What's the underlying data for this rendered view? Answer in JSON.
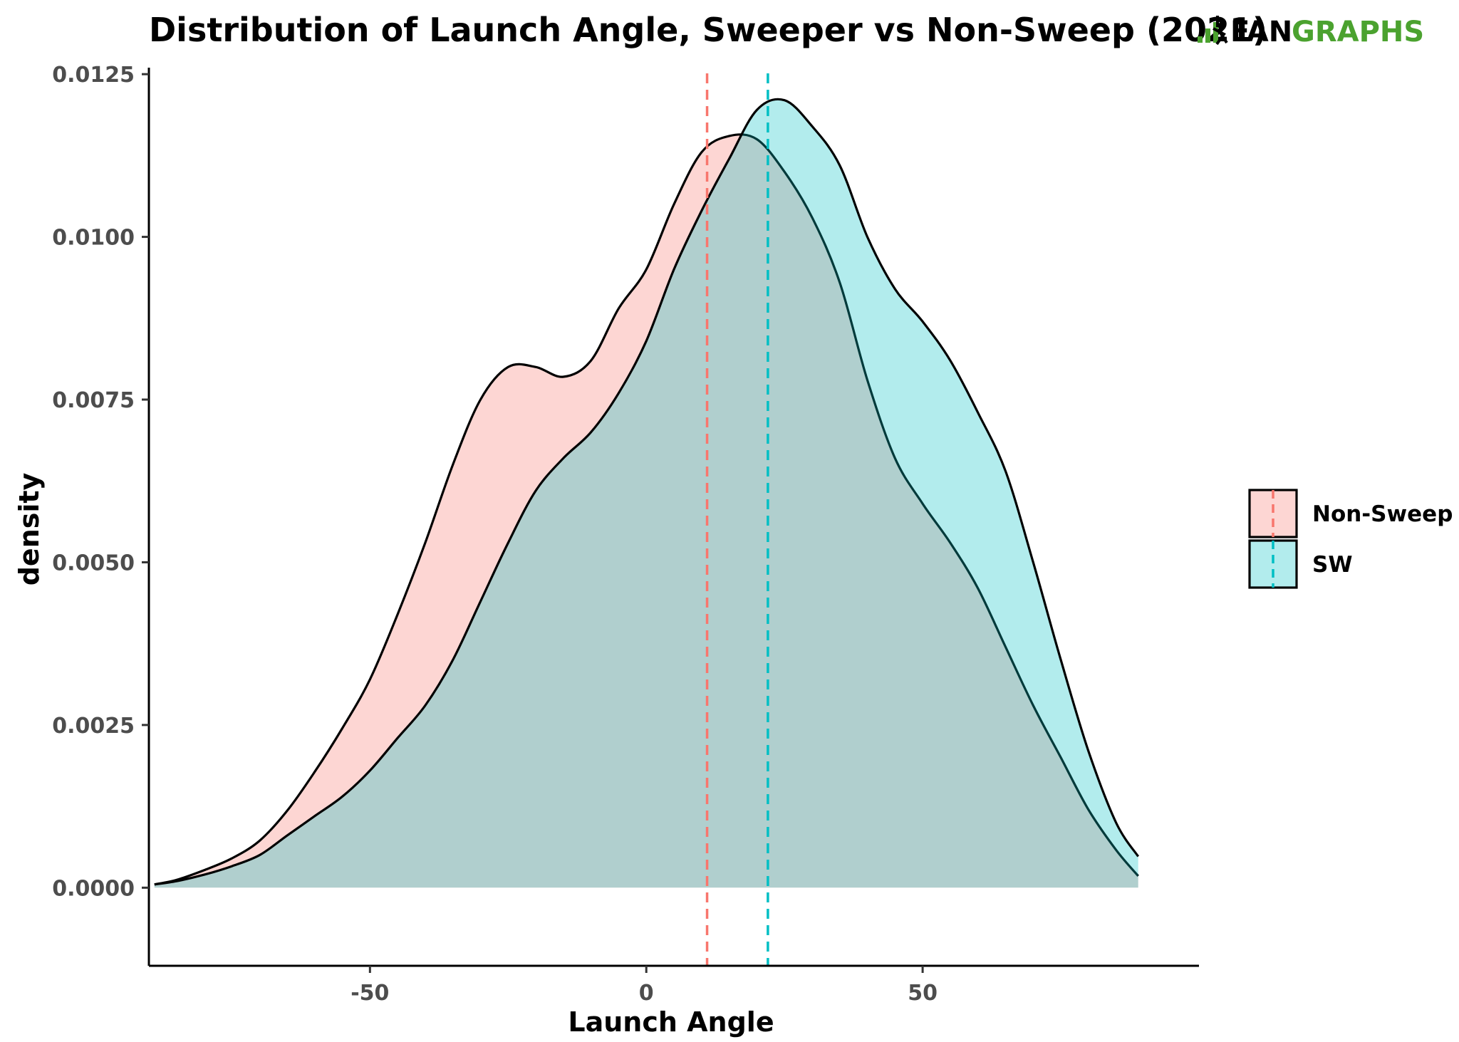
{
  "chart_data": {
    "type": "area",
    "title": "Distribution of Launch Angle, Sweeper vs Non-Sweep (2021)",
    "xlabel": "Launch Angle",
    "ylabel": "density",
    "xlim": [
      -90,
      100
    ],
    "ylim": [
      -0.0012,
      0.0126
    ],
    "x_ticks": [
      -50,
      0,
      50
    ],
    "x_tick_labels": [
      "-50",
      "0",
      "50"
    ],
    "y_ticks": [
      0,
      0.0025,
      0.005,
      0.0075,
      0.01,
      0.0125
    ],
    "y_tick_labels": [
      "0.0000",
      "0.0025",
      "0.0050",
      "0.0075",
      "0.0100",
      "0.0125"
    ],
    "grid": false,
    "legend_position": "right",
    "series": [
      {
        "name": "Non-Sweep",
        "color": "#F8766D",
        "mean_line": 11,
        "points": [
          [
            -89,
            5e-05
          ],
          [
            -85,
            0.00012
          ],
          [
            -80,
            0.00027
          ],
          [
            -75,
            0.00045
          ],
          [
            -70,
            0.00072
          ],
          [
            -65,
            0.00118
          ],
          [
            -60,
            0.00178
          ],
          [
            -55,
            0.00245
          ],
          [
            -50,
            0.0032
          ],
          [
            -45,
            0.0042
          ],
          [
            -40,
            0.0053
          ],
          [
            -35,
            0.0065
          ],
          [
            -30,
            0.0075
          ],
          [
            -25,
            0.008
          ],
          [
            -20,
            0.008
          ],
          [
            -15,
            0.00785
          ],
          [
            -10,
            0.0081
          ],
          [
            -5,
            0.0089
          ],
          [
            0,
            0.0095
          ],
          [
            5,
            0.0105
          ],
          [
            10,
            0.0113
          ],
          [
            15,
            0.01155
          ],
          [
            20,
            0.0115
          ],
          [
            25,
            0.011
          ],
          [
            30,
            0.0103
          ],
          [
            35,
            0.0093
          ],
          [
            40,
            0.0078
          ],
          [
            45,
            0.0066
          ],
          [
            50,
            0.0059
          ],
          [
            55,
            0.0053
          ],
          [
            60,
            0.0046
          ],
          [
            65,
            0.0037
          ],
          [
            70,
            0.0028
          ],
          [
            75,
            0.002
          ],
          [
            80,
            0.0012
          ],
          [
            85,
            0.00058
          ],
          [
            89,
            0.00018
          ]
        ]
      },
      {
        "name": "SW",
        "color": "#00BFC4",
        "mean_line": 22,
        "points": [
          [
            -89,
            5e-05
          ],
          [
            -85,
            0.0001
          ],
          [
            -80,
            0.0002
          ],
          [
            -75,
            0.00033
          ],
          [
            -70,
            0.0005
          ],
          [
            -65,
            0.0008
          ],
          [
            -60,
            0.0011
          ],
          [
            -55,
            0.0014
          ],
          [
            -50,
            0.0018
          ],
          [
            -45,
            0.0023
          ],
          [
            -40,
            0.0028
          ],
          [
            -35,
            0.0035
          ],
          [
            -30,
            0.0044
          ],
          [
            -25,
            0.0053
          ],
          [
            -20,
            0.0061
          ],
          [
            -15,
            0.0066
          ],
          [
            -10,
            0.007
          ],
          [
            -5,
            0.0076
          ],
          [
            0,
            0.0084
          ],
          [
            5,
            0.0095
          ],
          [
            10,
            0.0104
          ],
          [
            15,
            0.0112
          ],
          [
            20,
            0.01195
          ],
          [
            25,
            0.0121
          ],
          [
            30,
            0.0117
          ],
          [
            35,
            0.0111
          ],
          [
            40,
            0.01
          ],
          [
            45,
            0.0092
          ],
          [
            50,
            0.0087
          ],
          [
            55,
            0.0081
          ],
          [
            60,
            0.0073
          ],
          [
            65,
            0.0064
          ],
          [
            70,
            0.005
          ],
          [
            75,
            0.0035
          ],
          [
            80,
            0.0021
          ],
          [
            85,
            0.001
          ],
          [
            89,
            0.00048
          ]
        ]
      }
    ]
  },
  "logo": {
    "text_fan": "FAN",
    "text_graphs": "GRAPHS",
    "brand_green": "#4BA22F",
    "icon": "batter-icon"
  }
}
